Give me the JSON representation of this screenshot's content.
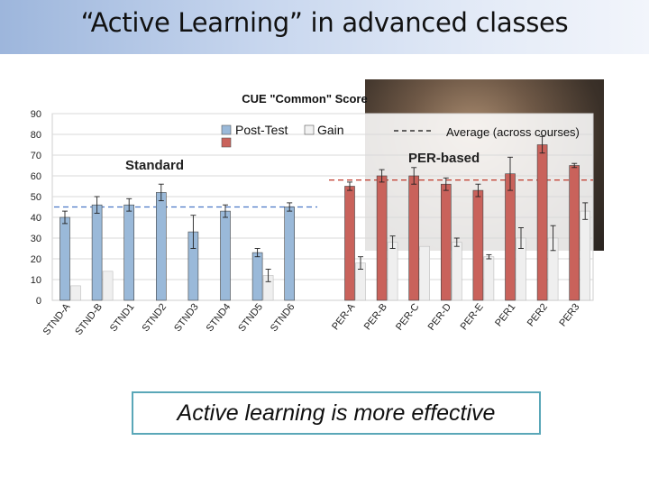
{
  "slide": {
    "title": "“Active Learning” in advanced classes",
    "callout": "Active learning is more effective"
  },
  "chart_data": {
    "type": "bar",
    "title": "CUE \"Common\" Score",
    "ylim": [
      0,
      90
    ],
    "yticks": [
      0,
      10,
      20,
      30,
      40,
      50,
      60,
      70,
      80,
      90
    ],
    "legend": {
      "post_test": "Post-Test",
      "gain": "Gain",
      "average": "Average (across courses)",
      "placement": "top"
    },
    "groups": [
      {
        "label": "Standard",
        "color": "#9ab9d9",
        "avg_color": "#4a77c5",
        "average": 45,
        "categories": [
          "STND-A",
          "STND-B",
          "STND1",
          "STND2",
          "STND3",
          "STND4",
          "STND5",
          "STND6"
        ],
        "post_test": [
          40,
          46,
          46,
          52,
          33,
          43,
          23,
          45
        ],
        "post_test_err": [
          3,
          4,
          3,
          4,
          8,
          3,
          2,
          2
        ],
        "gain": [
          7,
          14,
          null,
          null,
          null,
          null,
          12,
          null
        ],
        "gain_err": [
          null,
          null,
          null,
          null,
          null,
          null,
          3,
          null
        ]
      },
      {
        "label": "PER-based",
        "color": "#c9625b",
        "avg_color": "#c0392b",
        "average": 58,
        "categories": [
          "PER-A",
          "PER-B",
          "PER-C",
          "PER-D",
          "PER-E",
          "PER1",
          "PER2",
          "PER3"
        ],
        "post_test": [
          55,
          60,
          60,
          56,
          53,
          61,
          75,
          65
        ],
        "post_test_err": [
          2,
          3,
          4,
          3,
          3,
          8,
          4,
          1
        ],
        "gain": [
          18,
          28,
          26,
          28,
          21,
          30,
          30,
          43
        ],
        "gain_err": [
          3,
          3,
          null,
          2,
          1,
          5,
          6,
          4
        ]
      }
    ],
    "gridlines": true
  }
}
